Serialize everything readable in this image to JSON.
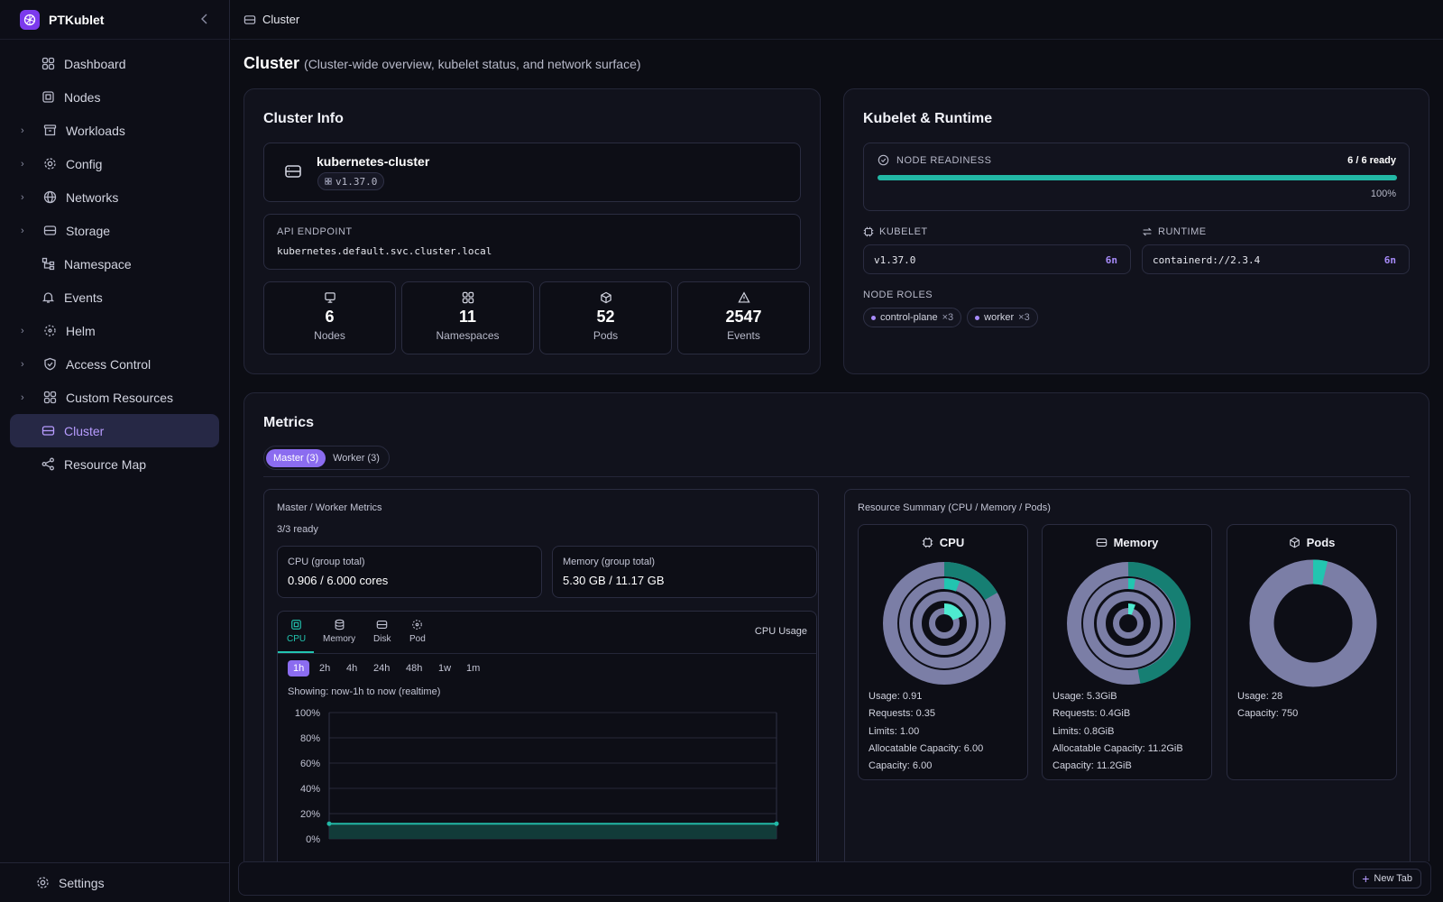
{
  "app": {
    "name": "PTKublet"
  },
  "sidebar": {
    "items": [
      {
        "label": "Dashboard",
        "icon": "grid-icon"
      },
      {
        "label": "Nodes",
        "icon": "chip-icon"
      },
      {
        "label": "Workloads",
        "icon": "archive-icon"
      },
      {
        "label": "Config",
        "icon": "gear-icon"
      },
      {
        "label": "Networks",
        "icon": "globe-icon"
      },
      {
        "label": "Storage",
        "icon": "database-icon"
      },
      {
        "label": "Namespace",
        "icon": "tree-icon"
      },
      {
        "label": "Events",
        "icon": "bell-icon"
      },
      {
        "label": "Helm",
        "icon": "helm-icon"
      },
      {
        "label": "Access Control",
        "icon": "shield-icon"
      },
      {
        "label": "Custom Resources",
        "icon": "grid-icon"
      },
      {
        "label": "Cluster",
        "icon": "server-icon"
      },
      {
        "label": "Resource Map",
        "icon": "share-icon"
      }
    ],
    "settings": "Settings"
  },
  "breadcrumb": "Cluster",
  "page": {
    "title": "Cluster",
    "subtitle": "(Cluster-wide overview, kubelet status, and network surface)"
  },
  "cluster_info": {
    "title": "Cluster Info",
    "name": "kubernetes-cluster",
    "version": "v1.37.0",
    "api_label": "API ENDPOINT",
    "api_value": "kubernetes.default.svc.cluster.local",
    "stats": [
      {
        "value": "6",
        "label": "Nodes"
      },
      {
        "value": "11",
        "label": "Namespaces"
      },
      {
        "value": "52",
        "label": "Pods"
      },
      {
        "value": "2547",
        "label": "Events"
      }
    ]
  },
  "kubelet": {
    "title": "Kubelet & Runtime",
    "readiness_label": "NODE READINESS",
    "readiness_value": "6 / 6 ready",
    "readiness_percent": "100%",
    "readiness_fraction": 1.0,
    "kubelet_label": "KUBELET",
    "kubelet_value": "v1.37.0",
    "kubelet_badge": "6n",
    "runtime_label": "RUNTIME",
    "runtime_value": "containerd://2.3.4",
    "runtime_badge": "6n",
    "roles_label": "NODE ROLES",
    "roles": [
      {
        "name": "control-plane",
        "count": "×3"
      },
      {
        "name": "worker",
        "count": "×3"
      }
    ]
  },
  "metrics": {
    "title": "Metrics",
    "tabs": [
      "Master (3)",
      "Worker (3)"
    ],
    "left": {
      "title": "Master / Worker Metrics",
      "ready": "3/3 ready",
      "cpu_label": "CPU (group total)",
      "cpu_value": "0.906 / 6.000 cores",
      "mem_label": "Memory (group total)",
      "mem_value": "5.30 GB / 11.17 GB",
      "metric_tabs": [
        "CPU",
        "Memory",
        "Disk",
        "Pod"
      ],
      "chart_label": "CPU Usage",
      "ranges": [
        "1h",
        "2h",
        "4h",
        "24h",
        "48h",
        "1w",
        "1m"
      ],
      "showing": "Showing: now-1h to now (realtime)"
    },
    "right": {
      "title": "Resource Summary (CPU / Memory / Pods)",
      "cards": [
        {
          "title": "CPU",
          "lines": [
            "Usage: 0.91",
            "Requests: 0.35",
            "Limits: 1.00",
            "Allocatable Capacity: 6.00",
            "Capacity: 6.00"
          ]
        },
        {
          "title": "Memory",
          "lines": [
            "Usage: 5.3GiB",
            "Requests: 0.4GiB",
            "Limits: 0.8GiB",
            "Allocatable Capacity: 11.2GiB",
            "Capacity: 11.2GiB"
          ]
        },
        {
          "title": "Pods",
          "lines": [
            "Usage: 28",
            "Capacity: 750"
          ]
        }
      ]
    }
  },
  "chart_data": {
    "type": "area",
    "title": "",
    "xlabel": "",
    "ylabel": "",
    "y_ticks": [
      "100%",
      "80%",
      "60%",
      "40%",
      "20%",
      "0%"
    ],
    "ylim": [
      0,
      100
    ],
    "series": [
      {
        "values": [
          12,
          12
        ]
      }
    ],
    "color": "#22b8a6"
  },
  "footer": {
    "new_tab": "New Tab"
  },
  "colors": {
    "accent": "#8b6cf0",
    "teal": "#22b8a6",
    "slate": "#7b7ea6"
  }
}
